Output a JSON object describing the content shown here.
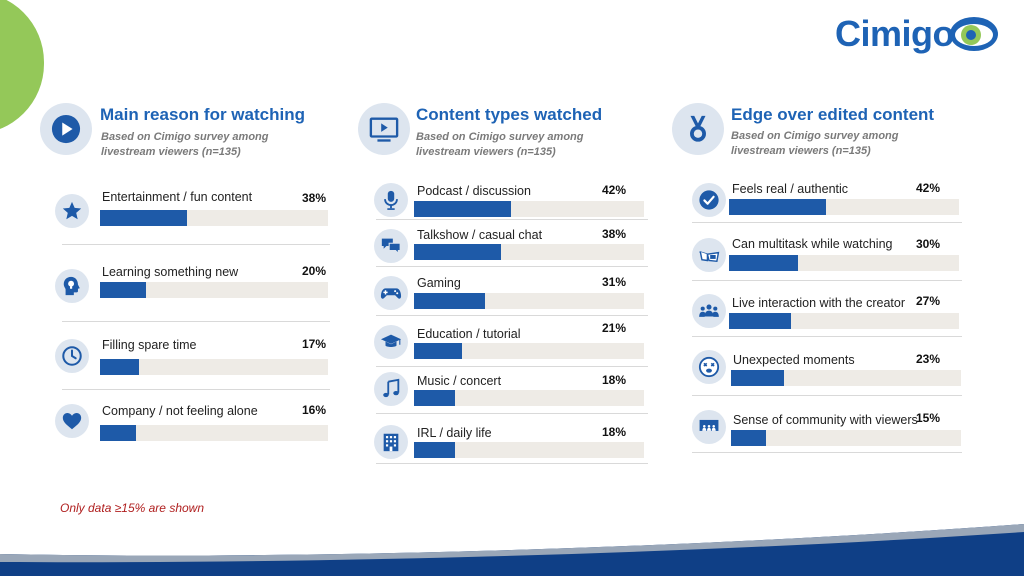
{
  "brand": {
    "logo_text": "Cimigo",
    "accent": "#1e63b5",
    "bar_color": "#1e5aa8",
    "track_color": "#eeebe6",
    "green": "#94c859"
  },
  "note": "Only data ≥15% are shown",
  "chart_data": [
    {
      "type": "bar",
      "title": "Main reason for watching",
      "subtitle": "Based on Cimigo survey among livestream viewers (n=135)",
      "icon": "play-icon",
      "categories": [
        "Entertainment / fun content",
        "Learning something new",
        "Filling spare time",
        "Company / not feeling alone"
      ],
      "values": [
        38,
        20,
        17,
        16
      ],
      "value_labels": [
        "38%",
        "20%",
        "17%",
        "16%"
      ],
      "item_icons": [
        "star-icon",
        "head-bulb-icon",
        "clock-icon",
        "heart-icon"
      ],
      "ylim": [
        0,
        100
      ]
    },
    {
      "type": "bar",
      "title": "Content types watched",
      "subtitle": "Based on Cimigo survey among livestream viewers (n=135)",
      "icon": "monitor-play-icon",
      "categories": [
        "Podcast / discussion",
        "Talkshow / casual chat",
        "Gaming",
        "Education / tutorial",
        "Music / concert",
        "IRL / daily life"
      ],
      "values": [
        42,
        38,
        31,
        21,
        18,
        18
      ],
      "value_labels": [
        "42%",
        "38%",
        "31%",
        "21%",
        "18%",
        "18%"
      ],
      "item_icons": [
        "microphone-icon",
        "chat-bubbles-icon",
        "gamepad-icon",
        "graduation-cap-icon",
        "music-note-icon",
        "building-icon"
      ],
      "ylim": [
        0,
        100
      ]
    },
    {
      "type": "bar",
      "title": "Edge over edited content",
      "subtitle": "Based on Cimigo survey among livestream viewers (n=135)",
      "icon": "medal-icon",
      "categories": [
        "Feels real / authentic",
        "Can multitask while watching",
        "Live interaction with the creator",
        "Unexpected moments",
        "Sense of community with viewers"
      ],
      "values": [
        42,
        30,
        27,
        23,
        15
      ],
      "value_labels": [
        "42%",
        "30%",
        "27%",
        "23%",
        "15%"
      ],
      "item_icons": [
        "check-circle-icon",
        "glasses-icon",
        "people-icon",
        "surprised-face-icon",
        "audience-icon"
      ],
      "ylim": [
        0,
        100
      ]
    }
  ]
}
